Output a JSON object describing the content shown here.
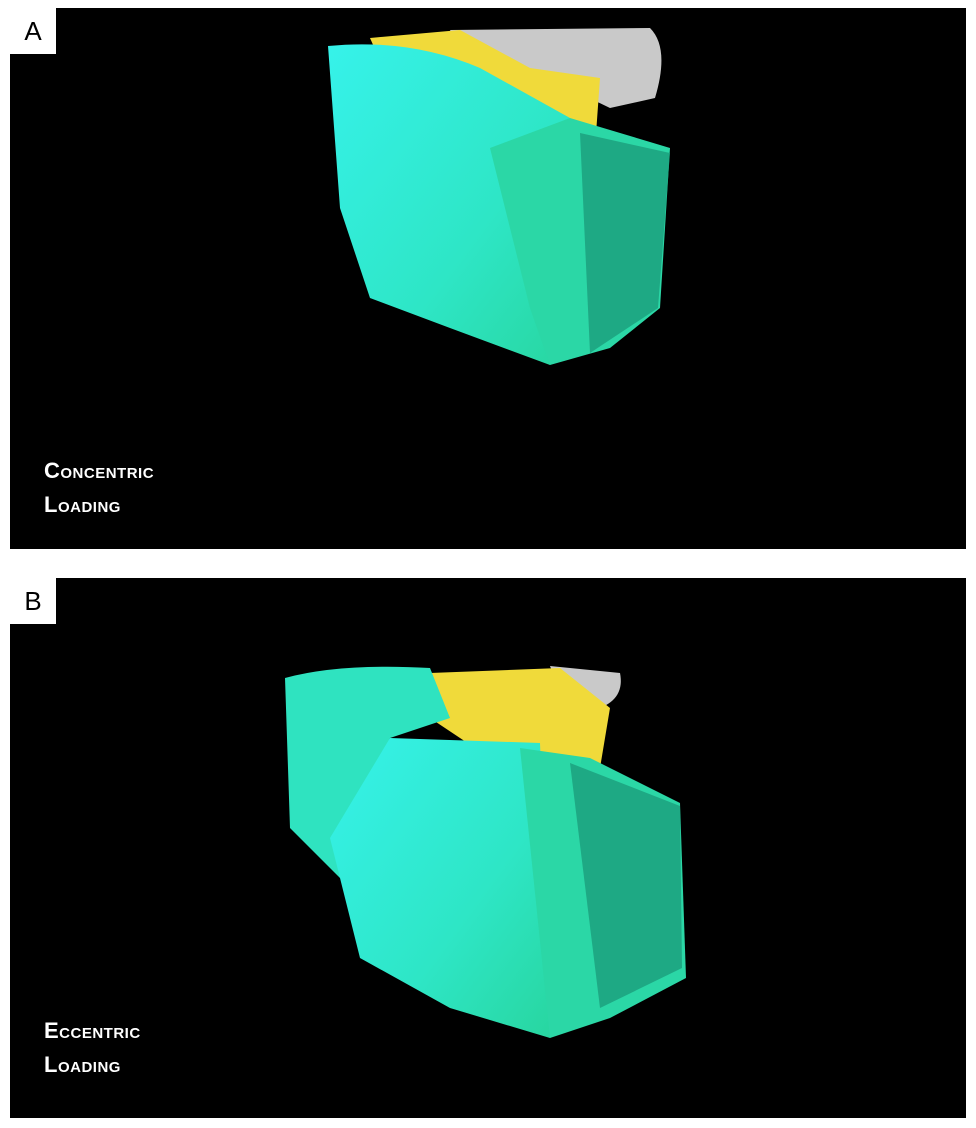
{
  "figure": {
    "panels": [
      {
        "label": "A",
        "caption_line1": "Concentric",
        "caption_line2": "Loading"
      },
      {
        "label": "B",
        "caption_line1": "Eccentric",
        "caption_line2": "Loading"
      }
    ],
    "colors": {
      "background": "#000000",
      "bone_cortical": "#2fe0a8",
      "bone_highlight": "#33f0e8",
      "implant_yellow": "#f2dc3c",
      "crown_gray": "#c8c8c8"
    }
  }
}
